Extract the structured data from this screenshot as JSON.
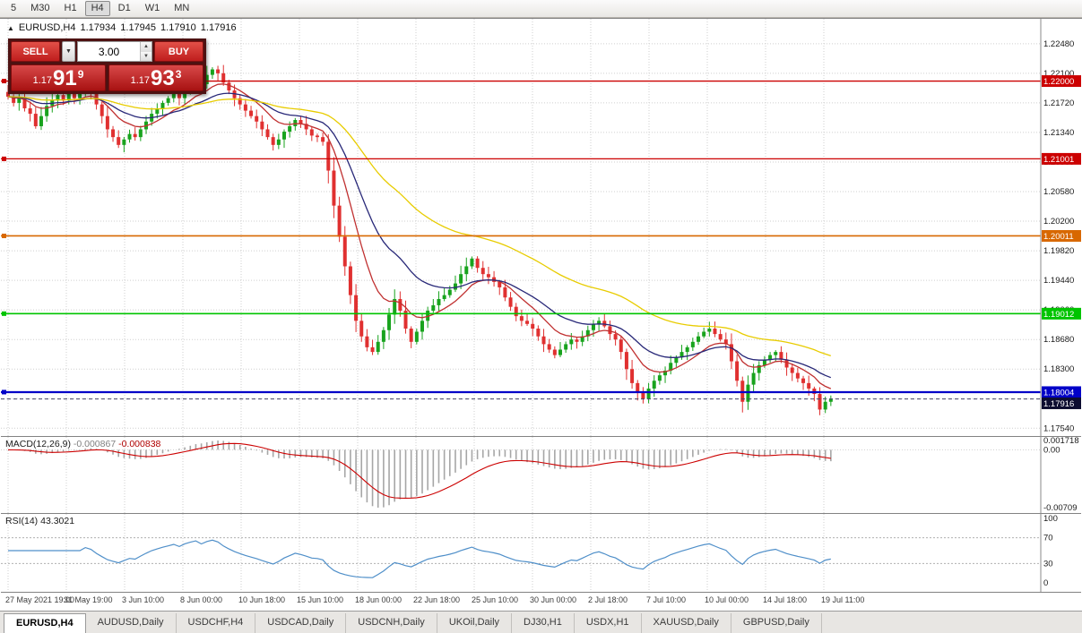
{
  "toolbar": {
    "timeframes": [
      {
        "label": "5",
        "active": false
      },
      {
        "label": "M30",
        "active": false
      },
      {
        "label": "H1",
        "active": false
      },
      {
        "label": "H4",
        "active": true
      },
      {
        "label": "D1",
        "active": false
      },
      {
        "label": "W1",
        "active": false
      },
      {
        "label": "MN",
        "active": false
      }
    ]
  },
  "chart_header": {
    "symbol": "EURUSD,H4",
    "open": "1.17934",
    "high": "1.17945",
    "low": "1.17910",
    "close": "1.17916"
  },
  "trade_panel": {
    "sell_label": "SELL",
    "buy_label": "BUY",
    "volume": "3.00",
    "bid": {
      "prefix": "1.17",
      "big": "91",
      "sup": "9"
    },
    "ask": {
      "prefix": "1.17",
      "big": "93",
      "sup": "3"
    }
  },
  "indicators": {
    "macd": {
      "label": "MACD(12,26,9)",
      "value_main": "-0.000867",
      "value_signal": "-0.000838"
    },
    "rsi": {
      "label": "RSI(14)",
      "value": "43.3021"
    }
  },
  "tabs": [
    {
      "label": "EURUSD,H4",
      "active": true
    },
    {
      "label": "AUDUSD,Daily",
      "active": false
    },
    {
      "label": "USDCHF,H4",
      "active": false
    },
    {
      "label": "USDCAD,Daily",
      "active": false
    },
    {
      "label": "USDCNH,Daily",
      "active": false
    },
    {
      "label": "UKOil,Daily",
      "active": false
    },
    {
      "label": "DJ30,H1",
      "active": false
    },
    {
      "label": "USDX,H1",
      "active": false
    },
    {
      "label": "XAUUSD,Daily",
      "active": false
    },
    {
      "label": "GBPUSD,Daily",
      "active": false
    }
  ],
  "chart_data": {
    "type": "candlestick",
    "symbol": "EURUSD",
    "timeframe": "H4",
    "current_ohlc": {
      "open": 1.17934,
      "high": 1.17945,
      "low": 1.1791,
      "close": 1.17916
    },
    "price_range": {
      "top": 1.228,
      "bottom": 1.1744
    },
    "price_gridlines": [
      "1.22480",
      "1.22100",
      "1.21720",
      "1.21340",
      "1.20960",
      "1.20580",
      "1.20200",
      "1.19820",
      "1.19440",
      "1.19060",
      "1.18680",
      "1.18300",
      "1.17920",
      "1.17540"
    ],
    "time_labels": [
      "27 May 2021 19:00",
      "31 May 19:00",
      "3 Jun 10:00",
      "8 Jun 00:00",
      "10 Jun 18:00",
      "15 Jun 10:00",
      "18 Jun 00:00",
      "22 Jun 18:00",
      "25 Jun 10:00",
      "30 Jun 00:00",
      "2 Jul 18:00",
      "7 Jul 10:00",
      "10 Jul 00:00",
      "14 Jul 18:00",
      "19 Jul 11:00"
    ],
    "closes": [
      1.218,
      1.2172,
      1.2178,
      1.2165,
      1.2158,
      1.2142,
      1.2155,
      1.2168,
      1.2175,
      1.2182,
      1.2175,
      1.2185,
      1.2178,
      1.2188,
      1.2192,
      1.2186,
      1.217,
      1.2155,
      1.2138,
      1.2128,
      1.2118,
      1.2125,
      1.2132,
      1.2128,
      1.2138,
      1.2148,
      1.2158,
      1.2165,
      1.2172,
      1.2178,
      1.2185,
      1.2178,
      1.219,
      1.2198,
      1.2205,
      1.2196,
      1.2208,
      1.2215,
      1.221,
      1.2198,
      1.2188,
      1.2178,
      1.217,
      1.2162,
      1.2155,
      1.2148,
      1.2138,
      1.2128,
      1.2118,
      1.2125,
      1.2135,
      1.2142,
      1.215,
      1.2145,
      1.2138,
      1.213,
      1.2128,
      1.2122,
      1.2085,
      1.204,
      1.2,
      1.1962,
      1.1925,
      1.1892,
      1.1872,
      1.1858,
      1.1852,
      1.1865,
      1.188,
      1.19,
      1.192,
      1.1905,
      1.1882,
      1.1865,
      1.1878,
      1.1892,
      1.1905,
      1.1912,
      1.192,
      1.1925,
      1.1932,
      1.194,
      1.1952,
      1.1962,
      1.1972,
      1.196,
      1.1952,
      1.1948,
      1.1942,
      1.1935,
      1.1922,
      1.191,
      1.1898,
      1.1892,
      1.1888,
      1.1882,
      1.1872,
      1.1862,
      1.1855,
      1.1848,
      1.1855,
      1.1862,
      1.1868,
      1.1865,
      1.1872,
      1.188,
      1.1888,
      1.1892,
      1.1885,
      1.1875,
      1.1868,
      1.1852,
      1.183,
      1.1812,
      1.18,
      1.1792,
      1.1805,
      1.1815,
      1.1822,
      1.1828,
      1.1838,
      1.1845,
      1.1852,
      1.1858,
      1.1865,
      1.1872,
      1.1878,
      1.1882,
      1.1875,
      1.1868,
      1.1862,
      1.184,
      1.1815,
      1.1788,
      1.181,
      1.1825,
      1.1835,
      1.1842,
      1.1848,
      1.1852,
      1.1842,
      1.1832,
      1.1825,
      1.1818,
      1.1812,
      1.1805,
      1.1798,
      1.1778,
      1.1788,
      1.17916
    ],
    "overlays": [
      {
        "name": "ma-fast-line",
        "period": 10,
        "color": "#c03030"
      },
      {
        "name": "ma-medium-line",
        "period": 21,
        "color": "#282878"
      },
      {
        "name": "ma-slow-line",
        "period": 50,
        "color": "#e8cc00"
      }
    ],
    "hlines": [
      {
        "price": 1.22,
        "label": "1.22000",
        "color": "#cc0000",
        "width": 1.3
      },
      {
        "price": 1.21001,
        "label": "1.21001",
        "color": "#cc0000",
        "width": 1.3
      },
      {
        "price": 1.20011,
        "label": "1.20011",
        "color": "#d86800",
        "width": 1.6
      },
      {
        "price": 1.19012,
        "label": "1.19012",
        "color": "#00c400",
        "width": 1.6
      },
      {
        "price": 1.18004,
        "label": "1.18004",
        "color": "#0000c8",
        "width": 2.2
      }
    ],
    "current_price": {
      "price": 1.17916,
      "label": "1.17916",
      "color": "#0c0c30"
    },
    "candle_colors": {
      "up": "#18a31d",
      "down": "#e03030"
    },
    "macd": {
      "fast": 12,
      "slow": 26,
      "signal": 9,
      "axis_labels": [
        "0.001718",
        "0.00",
        "-0.00709"
      ],
      "histogram_color": "#a6a6a6",
      "signal_color": "#cc0000"
    },
    "rsi": {
      "period": 14,
      "levels": [
        70,
        30
      ],
      "axis_labels": [
        "100",
        "70",
        "30",
        "0"
      ],
      "color": "#4f8fc9"
    }
  }
}
